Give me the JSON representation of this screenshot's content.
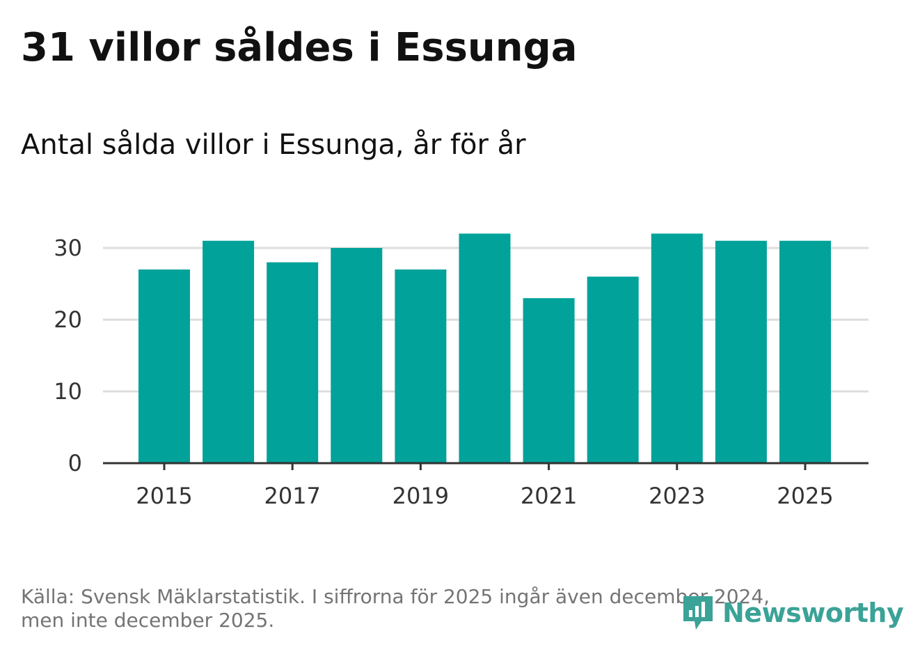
{
  "header": {
    "title": "31 villor såldes i Essunga",
    "subtitle": "Antal sålda villor i Essunga, år för år"
  },
  "chart_data": {
    "type": "bar",
    "title": "31 villor såldes i Essunga",
    "subtitle": "Antal sålda villor i Essunga, år för år",
    "categories": [
      "2015",
      "2016",
      "2017",
      "2018",
      "2019",
      "2020",
      "2021",
      "2022",
      "2023",
      "2024",
      "2025"
    ],
    "values": [
      27,
      31,
      28,
      30,
      27,
      32,
      23,
      26,
      32,
      31,
      31
    ],
    "x_tick_labels": [
      "2015",
      "2017",
      "2019",
      "2021",
      "2023",
      "2025"
    ],
    "y_ticks": [
      0,
      10,
      20,
      30
    ],
    "ylim": [
      0,
      32
    ],
    "xlabel": "",
    "ylabel": "",
    "grid": true,
    "bar_color": "#00a29a"
  },
  "footer": {
    "source_line1": "Källa: Svensk Mäklarstatistik. I siffrorna för 2025 ingår även december 2024,",
    "source_line2": "men inte december 2025."
  },
  "logo": {
    "text": "Newsworthy",
    "icon": "newsworthy-logo-icon",
    "color": "#3ba297"
  }
}
